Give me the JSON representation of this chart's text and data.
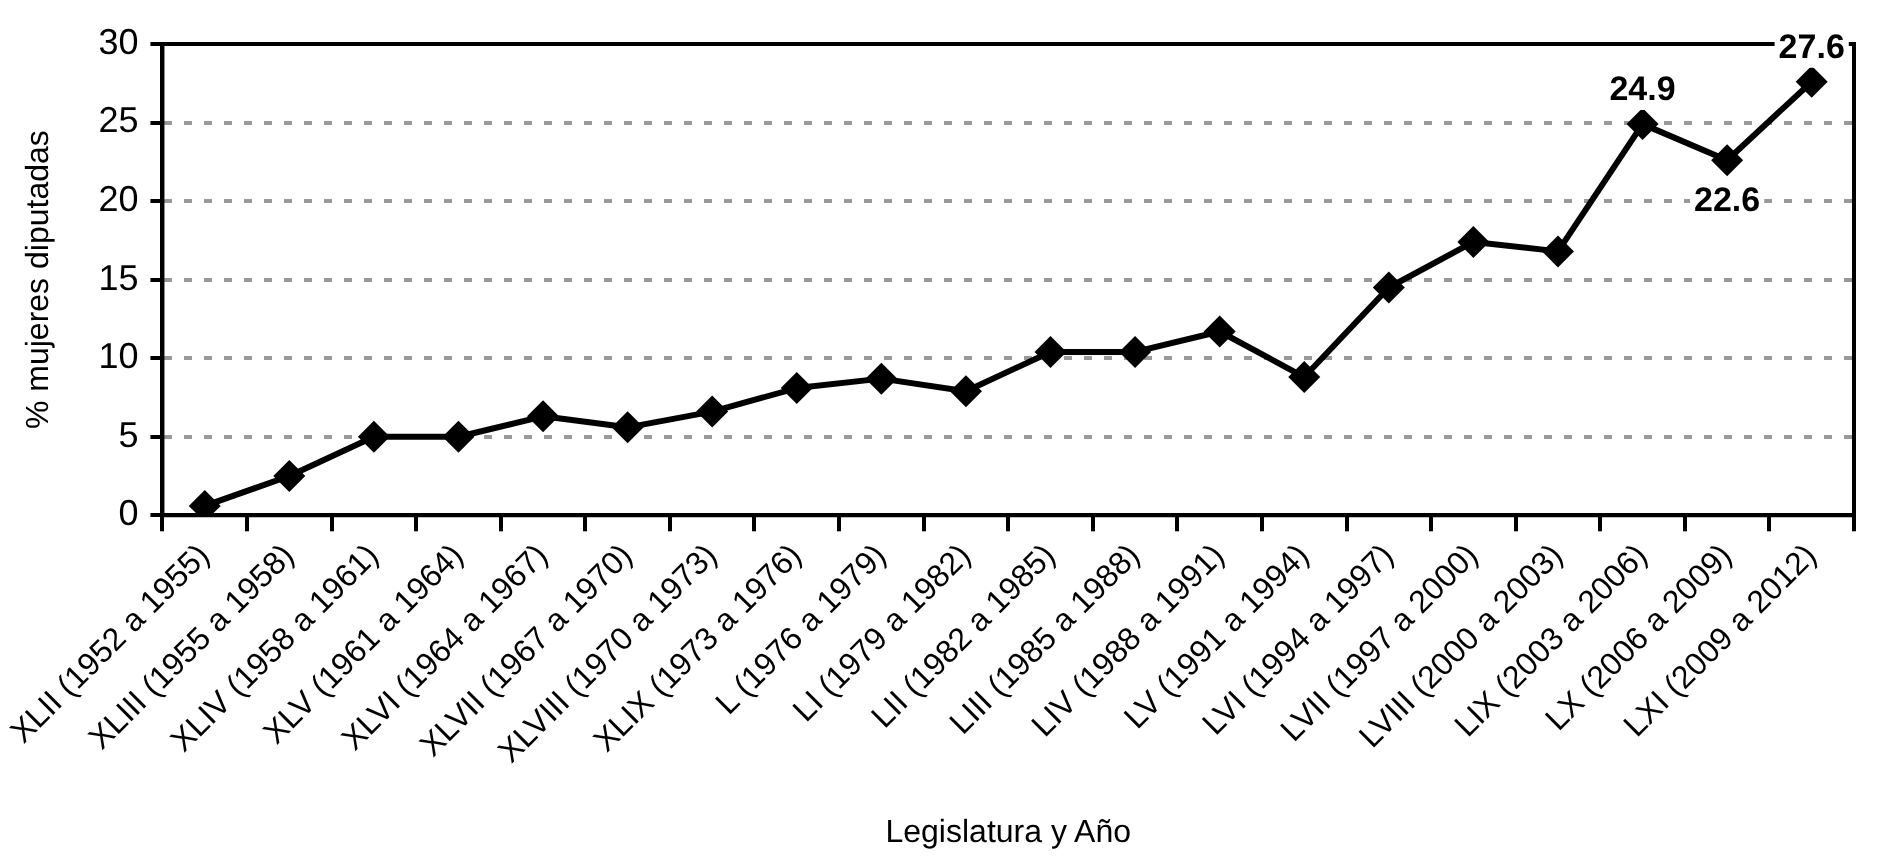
{
  "chart_data": {
    "type": "line",
    "xlabel": "Legislatura y Año",
    "ylabel": "% mujeres diputadas",
    "categories": [
      "XLII (1952 a 1955)",
      "XLIII (1955 a 1958)",
      "XLIV (1958 a 1961)",
      "XLV (1961 a 1964)",
      "XLVI (1964 a 1967)",
      "XLVII (1967 a 1970)",
      "XLVIII (1970 a 1973)",
      "XLIX (1973 a 1976)",
      "L (1976 a 1979)",
      "LI (1979 a 1982)",
      "LII (1982 a 1985)",
      "LIII (1985 a 1988)",
      "LIV (1988 a 1991)",
      "LV (1991 a 1994)",
      "LVI (1994 a 1997)",
      "LVII (1997 a 2000)",
      "LVIII (2000 a 2003)",
      "LIX (2003 a 2006)",
      "LX (2006 a 2009)",
      "LXI (2009 a 2012)"
    ],
    "series": [
      {
        "color": "#000000",
        "values": [
          0.6,
          2.5,
          5.0,
          5.0,
          6.3,
          5.6,
          6.6,
          8.1,
          8.7,
          7.9,
          10.4,
          10.4,
          11.7,
          8.8,
          14.5,
          17.4,
          16.8,
          24.9,
          22.6,
          27.6
        ],
        "value_labels": [
          null,
          null,
          null,
          null,
          null,
          null,
          null,
          null,
          null,
          null,
          null,
          null,
          null,
          null,
          null,
          null,
          null,
          "24.9",
          "22.6",
          "27.6"
        ]
      }
    ],
    "ylim": [
      0,
      30
    ],
    "yticks": [
      0,
      5,
      10,
      15,
      20,
      25,
      30
    ],
    "grid": "y",
    "legend": false,
    "marker": "diamond",
    "line_style": "solid"
  }
}
